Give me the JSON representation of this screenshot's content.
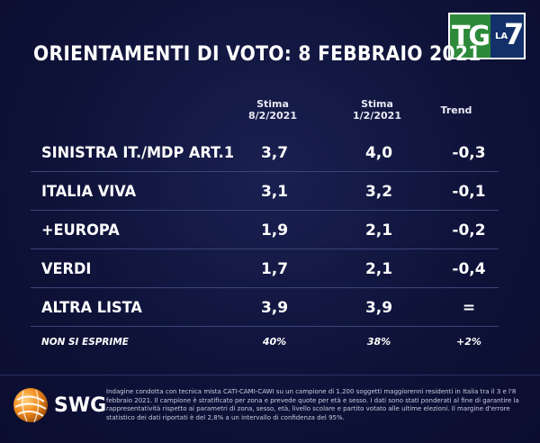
{
  "logo": {
    "tg": "TG",
    "la": "LA",
    "seven": "7"
  },
  "title": "ORIENTAMENTI DI VOTO: 8 FEBBRAIO 2021",
  "headers": {
    "col1_line1": "Stima",
    "col1_line2": "8/2/2021",
    "col2_line1": "Stima",
    "col2_line2": "1/2/2021",
    "col3": "Trend"
  },
  "rows": [
    {
      "label": "SINISTRA IT./MDP ART.1",
      "stima_8": "3,7",
      "stima_1": "4,0",
      "trend": "-0,3"
    },
    {
      "label": "ITALIA VIVA",
      "stima_8": "3,1",
      "stima_1": "3,2",
      "trend": "-0,1"
    },
    {
      "label": "+EUROPA",
      "stima_8": "1,9",
      "stima_1": "2,1",
      "trend": "-0,2"
    },
    {
      "label": "VERDI",
      "stima_8": "1,7",
      "stima_1": "2,1",
      "trend": "-0,4"
    },
    {
      "label": "ALTRA LISTA",
      "stima_8": "3,9",
      "stima_1": "3,9",
      "trend": "="
    },
    {
      "label": "NON SI ESPRIME",
      "stima_8": "40%",
      "stima_1": "38%",
      "trend": "+2%"
    }
  ],
  "source": {
    "name": "SWG",
    "icon": "swg-globe-icon"
  },
  "note": "Indagine condotta con tecnica mista CATI-CAMI-CAWI su un campione di 1.200 soggetti maggiorenni residenti in Italia tra il 3 e l'8 febbraio 2021. Il campione è stratificato per zona e prevede quote per età e sesso. I dati sono stati ponderati al fine di garantire la rappresentatività rispetto ai parametri di zona, sesso, età, livello scolare e partito votato alle ultime elezioni. Il margine d'errore statistico dei dati riportati è del 2,8% a un intervallo di confidenza del 95%.",
  "colors": {
    "background": "#0d1139",
    "text": "#ffffff",
    "tg_green": "#2d8a3a",
    "la7_blue": "#14306a",
    "swg_orange": "#f08a1c"
  }
}
